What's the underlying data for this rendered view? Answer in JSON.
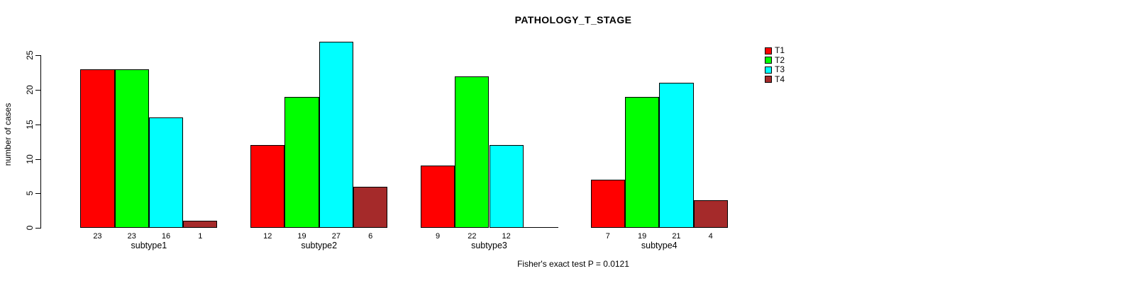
{
  "chart_data": {
    "type": "bar",
    "title": "PATHOLOGY_T_STAGE",
    "ylabel": "number of cases",
    "caption": "Fisher's exact test P = 0.0121",
    "categories": [
      "subtype1",
      "subtype2",
      "subtype3",
      "subtype4"
    ],
    "series": [
      {
        "name": "T1",
        "color": "#FF0000",
        "values": [
          23,
          12,
          9,
          7
        ]
      },
      {
        "name": "T2",
        "color": "#00FF00",
        "values": [
          23,
          19,
          22,
          19
        ]
      },
      {
        "name": "T3",
        "color": "#00FFFF",
        "values": [
          16,
          27,
          12,
          21
        ]
      },
      {
        "name": "T4",
        "color": "#A52A2A",
        "values": [
          1,
          6,
          0,
          4
        ]
      }
    ],
    "yticks": [
      0,
      5,
      10,
      15,
      20,
      25
    ],
    "ylim": [
      0,
      25
    ],
    "bar_value_labels": true,
    "zero_value_labels_hidden": true,
    "legend_position": "top-right",
    "grid": false,
    "background": "#FFFFFF",
    "axis_color": "#000000"
  }
}
